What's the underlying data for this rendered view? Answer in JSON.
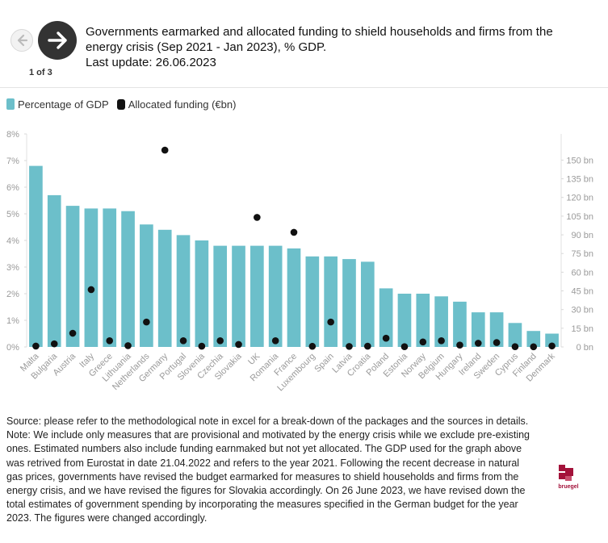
{
  "header": {
    "title_line1": "Governments earmarked and allocated funding to shield households and firms from the",
    "title_line2": "energy crisis (Sep 2021 - Jan 2023), % GDP.",
    "title_line3": "Last update: 26.06.2023",
    "page_indicator": "1 of 3",
    "prev_icon": "arrow-left-icon",
    "next_icon": "arrow-right-icon"
  },
  "legend": {
    "items": [
      {
        "label": "Percentage of GDP",
        "color": "#6cbfca"
      },
      {
        "label": "Allocated funding (€bn)",
        "color": "#111111"
      }
    ]
  },
  "chart_data": {
    "type": "bar",
    "title": "",
    "categories": [
      "Malta",
      "Bulgaria",
      "Austria",
      "Italy",
      "Greece",
      "Lithuania",
      "Netherlands",
      "Germany",
      "Portugal",
      "Slovenia",
      "Czechia",
      "Slovakia",
      "UK",
      "Romania",
      "France",
      "Luxembourg",
      "Spain",
      "Latvia",
      "Croatia",
      "Poland",
      "Estonia",
      "Norway",
      "Belgium",
      "Hungary",
      "Ireland",
      "Sweden",
      "Cyprus",
      "Finland",
      "Denmark"
    ],
    "series": [
      {
        "name": "Percentage of GDP",
        "axis": "left",
        "mark": "bar",
        "color": "#6cbfca",
        "values": [
          6.8,
          5.7,
          5.3,
          5.2,
          5.2,
          5.1,
          4.6,
          4.4,
          4.2,
          4.0,
          3.8,
          3.8,
          3.8,
          3.8,
          3.7,
          3.4,
          3.4,
          3.3,
          3.2,
          2.2,
          2.0,
          2.0,
          1.9,
          1.7,
          1.3,
          1.3,
          0.9,
          0.6,
          0.5
        ]
      },
      {
        "name": "Allocated funding (€bn)",
        "axis": "right",
        "mark": "dot",
        "color": "#111111",
        "values": [
          0.7,
          2.5,
          11,
          46,
          5,
          1,
          20,
          158,
          5,
          0.6,
          5,
          2,
          104,
          5,
          92,
          0.5,
          20,
          0.4,
          0.6,
          7,
          0.2,
          4,
          5,
          1.5,
          3,
          3.5,
          0.2,
          0.1,
          0.8
        ]
      }
    ],
    "y_left": {
      "ylim": [
        0,
        8
      ],
      "ticks": [
        "0%",
        "1%",
        "2%",
        "3%",
        "4%",
        "5%",
        "6%",
        "7%",
        "8%"
      ]
    },
    "y_right": {
      "ylim": [
        0,
        171
      ],
      "ticks": [
        "0 bn",
        "15 bn",
        "30 bn",
        "45 bn",
        "60 bn",
        "75 bn",
        "90 bn",
        "105 bn",
        "120 bn",
        "135 bn",
        "150 bn"
      ],
      "tick_values": [
        0,
        15,
        30,
        45,
        60,
        75,
        90,
        105,
        120,
        135,
        150
      ]
    },
    "grid": false,
    "legend_position": "top-left"
  },
  "notes": {
    "source": "Source: please refer to the methodological note in excel for a break-down of the packages and the sources in details.",
    "note": "Note: We include only measures that are provisional and motivated by the energy crisis while we exclude pre-existing ones. Estimated numbers also include funding earnmaked but not yet allocated. The GDP used for the graph above was retrived from Eurostat in date 21.04.2022 and refers to the year 2021. Following the recent decrease in natural gas prices, governments have revised the budget earmarked for measures to shield households and firms from the energy crisis, and we have revised the figures for Slovakia accordingly. On 26 June 2023, we have revised down the total estimates of government spending by incorporating the measures specified in the German budget for the year 2023. The figures were changed accordingly."
  },
  "logo": {
    "text": "bruegel",
    "color": "#a3123a"
  }
}
